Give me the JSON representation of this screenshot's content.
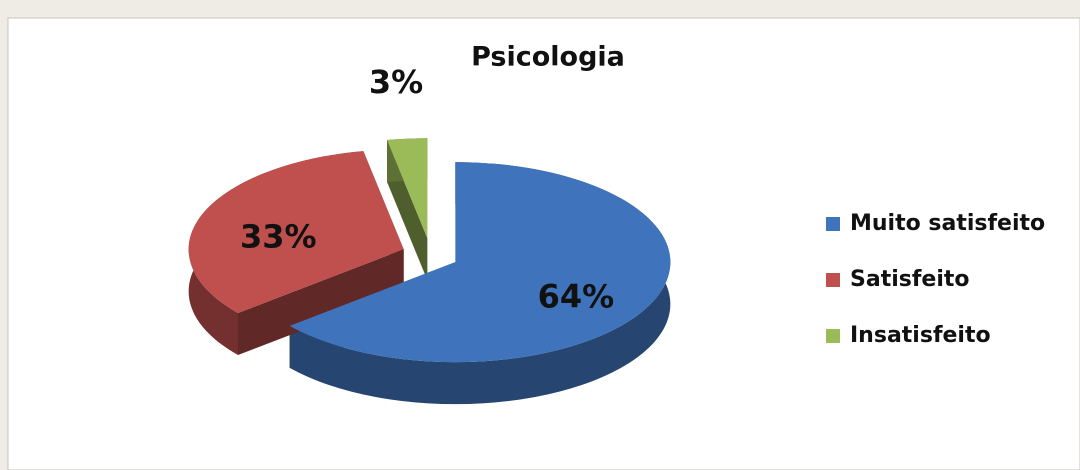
{
  "chart_data": {
    "type": "pie",
    "title": "Psicologia",
    "categories": [
      "Muito satisfeito",
      "Satisfeito",
      "Insatisfeito"
    ],
    "values": [
      64,
      33,
      3
    ],
    "value_labels": [
      "64%",
      "33%",
      "3%"
    ],
    "colors": [
      "#3f74bc",
      "#c0504d",
      "#9bbb59"
    ],
    "legend": "right"
  }
}
